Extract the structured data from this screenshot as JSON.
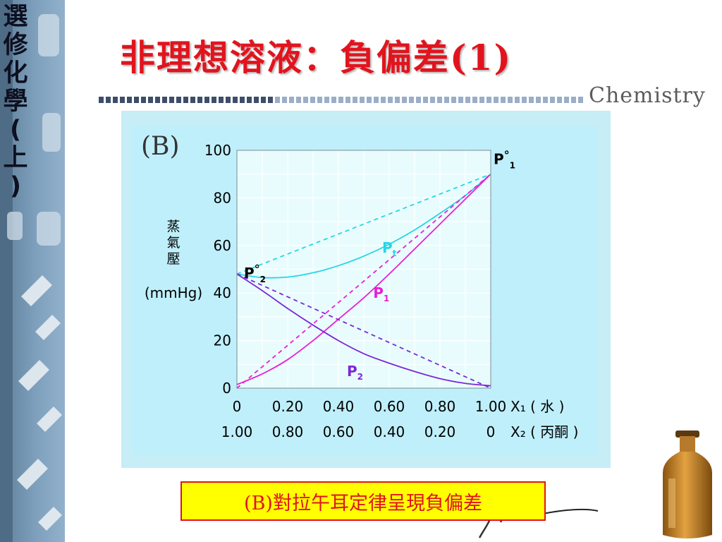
{
  "sidebar": {
    "chars": [
      "選",
      "修",
      "化",
      "學",
      "(",
      "上",
      ")"
    ]
  },
  "header": {
    "title": "非理想溶液：負偏差(1)",
    "brand": "Chemistry"
  },
  "caption": {
    "text": "(B)對拉午耳定律呈現負偏差"
  },
  "chart_data": {
    "type": "line",
    "panel_label": "(B)",
    "ylabel": "蒸氣壓",
    "ylabel_unit": "(mmHg)",
    "ylim": [
      0,
      100
    ],
    "y_ticks": [
      "0",
      "20",
      "40",
      "60",
      "80",
      "100"
    ],
    "x_ticks": [
      0,
      0.2,
      0.4,
      0.6,
      0.8,
      1.0
    ],
    "x1_tick_labels": [
      "0",
      "0.20",
      "0.40",
      "0.60",
      "0.80",
      "1.00"
    ],
    "x2_tick_labels": [
      "1.00",
      "0.80",
      "0.60",
      "0.40",
      "0.20",
      "0"
    ],
    "x1_axis_label": "X₁ ( 水 )",
    "x2_axis_label": "X₂ ( 丙酮 )",
    "grid": true,
    "series": [
      {
        "name": "Pt",
        "style": "solid",
        "color": "#26d6e6",
        "x": [
          0,
          0.1,
          0.2,
          0.3,
          0.4,
          0.5,
          0.6,
          0.7,
          0.8,
          0.9,
          1.0
        ],
        "y": [
          48,
          46.5,
          46.7,
          48.5,
          51.5,
          55.5,
          60.5,
          66.5,
          73.5,
          81,
          90
        ]
      },
      {
        "name": "P1",
        "style": "solid",
        "color": "#e81fd4",
        "x": [
          0,
          0.1,
          0.2,
          0.3,
          0.4,
          0.5,
          0.6,
          0.7,
          0.8,
          0.9,
          1.0
        ],
        "y": [
          1.5,
          6,
          12,
          20,
          29,
          38,
          48,
          58.5,
          69,
          79.5,
          90
        ]
      },
      {
        "name": "P2",
        "style": "solid",
        "color": "#7a28d8",
        "x": [
          0,
          0.1,
          0.2,
          0.3,
          0.4,
          0.5,
          0.6,
          0.7,
          0.8,
          0.9,
          1.0
        ],
        "y": [
          48,
          41,
          33.5,
          26.5,
          20,
          14.5,
          10.5,
          7,
          4,
          2,
          1
        ]
      },
      {
        "name": "ideal-total",
        "style": "dashed",
        "color": "#26d6e6",
        "x": [
          0,
          1.0
        ],
        "y": [
          48,
          90
        ]
      },
      {
        "name": "ideal-P1",
        "style": "dashed",
        "color": "#e81fd4",
        "x": [
          0,
          1.0
        ],
        "y": [
          0,
          90
        ]
      },
      {
        "name": "ideal-P2",
        "style": "dashed",
        "color": "#7a28d8",
        "x": [
          0,
          1.0
        ],
        "y": [
          48,
          0
        ]
      }
    ],
    "annotations": [
      {
        "main": "P",
        "sup": "°",
        "sub": "1",
        "x": 1.0,
        "y": 90,
        "color": "#000000"
      },
      {
        "main": "P",
        "sup": "°",
        "sub": "2",
        "x": 0,
        "y": 48,
        "color": "#000000"
      },
      {
        "main": "P",
        "sup": "",
        "sub": "t",
        "x": 0.55,
        "y": 57,
        "color": "#26d6e6"
      },
      {
        "main": "P",
        "sup": "",
        "sub": "1",
        "x": 0.62,
        "y": 38,
        "color": "#e81fd4"
      },
      {
        "main": "P",
        "sup": "",
        "sub": "2",
        "x": 0.45,
        "y": 8,
        "color": "#7a28d8"
      }
    ]
  }
}
